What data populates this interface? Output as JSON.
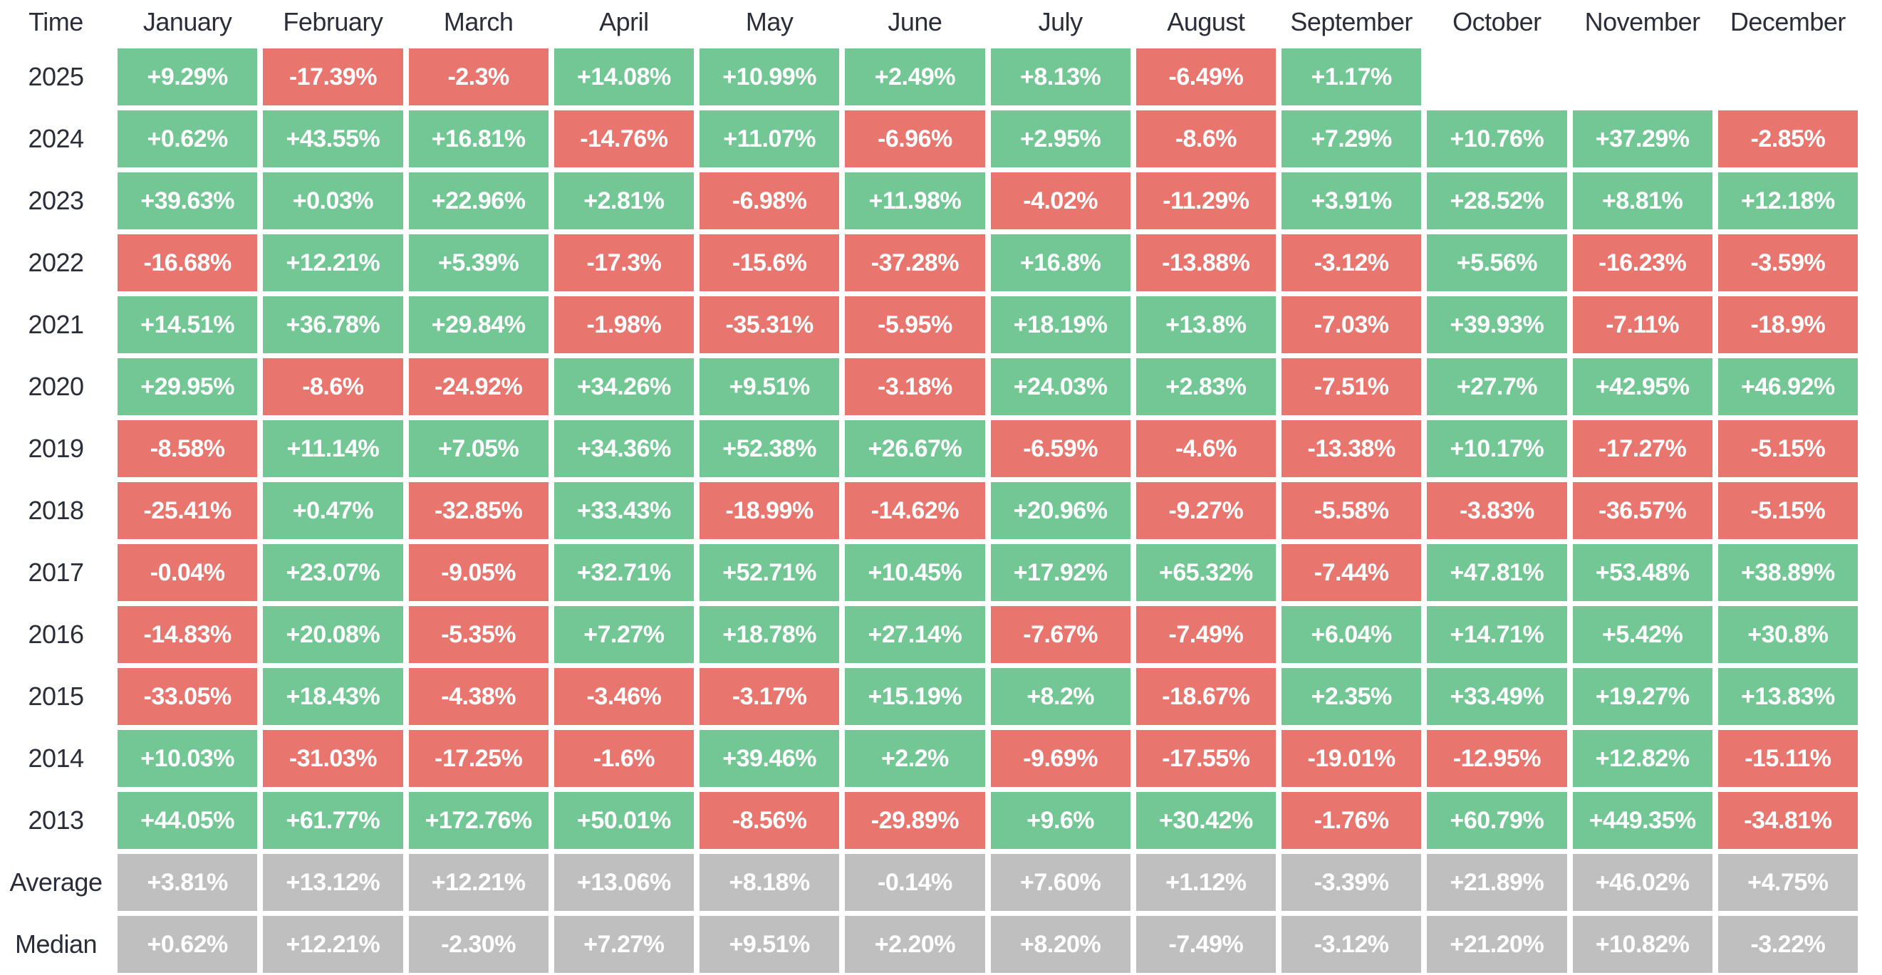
{
  "colors": {
    "positive": "#72C794",
    "negative": "#E8766F",
    "neutral": "#BFBFBF",
    "label_text": "#2A2E39",
    "cell_text": "#FFFFFF",
    "background": "#FFFFFF"
  },
  "chart_data": {
    "type": "heatmap",
    "corner_label": "Time",
    "legend": "none",
    "grid": "off",
    "columns": [
      "January",
      "February",
      "March",
      "April",
      "May",
      "June",
      "July",
      "August",
      "September",
      "October",
      "November",
      "December"
    ],
    "rows": [
      {
        "label": "2025",
        "summary": false,
        "cells": [
          "+9.29%",
          "-17.39%",
          "-2.3%",
          "+14.08%",
          "+10.99%",
          "+2.49%",
          "+8.13%",
          "-6.49%",
          "+1.17%",
          "",
          "",
          ""
        ]
      },
      {
        "label": "2024",
        "summary": false,
        "cells": [
          "+0.62%",
          "+43.55%",
          "+16.81%",
          "-14.76%",
          "+11.07%",
          "-6.96%",
          "+2.95%",
          "-8.6%",
          "+7.29%",
          "+10.76%",
          "+37.29%",
          "-2.85%"
        ]
      },
      {
        "label": "2023",
        "summary": false,
        "cells": [
          "+39.63%",
          "+0.03%",
          "+22.96%",
          "+2.81%",
          "-6.98%",
          "+11.98%",
          "-4.02%",
          "-11.29%",
          "+3.91%",
          "+28.52%",
          "+8.81%",
          "+12.18%"
        ]
      },
      {
        "label": "2022",
        "summary": false,
        "cells": [
          "-16.68%",
          "+12.21%",
          "+5.39%",
          "-17.3%",
          "-15.6%",
          "-37.28%",
          "+16.8%",
          "-13.88%",
          "-3.12%",
          "+5.56%",
          "-16.23%",
          "-3.59%"
        ]
      },
      {
        "label": "2021",
        "summary": false,
        "cells": [
          "+14.51%",
          "+36.78%",
          "+29.84%",
          "-1.98%",
          "-35.31%",
          "-5.95%",
          "+18.19%",
          "+13.8%",
          "-7.03%",
          "+39.93%",
          "-7.11%",
          "-18.9%"
        ]
      },
      {
        "label": "2020",
        "summary": false,
        "cells": [
          "+29.95%",
          "-8.6%",
          "-24.92%",
          "+34.26%",
          "+9.51%",
          "-3.18%",
          "+24.03%",
          "+2.83%",
          "-7.51%",
          "+27.7%",
          "+42.95%",
          "+46.92%"
        ]
      },
      {
        "label": "2019",
        "summary": false,
        "cells": [
          "-8.58%",
          "+11.14%",
          "+7.05%",
          "+34.36%",
          "+52.38%",
          "+26.67%",
          "-6.59%",
          "-4.6%",
          "-13.38%",
          "+10.17%",
          "-17.27%",
          "-5.15%"
        ]
      },
      {
        "label": "2018",
        "summary": false,
        "cells": [
          "-25.41%",
          "+0.47%",
          "-32.85%",
          "+33.43%",
          "-18.99%",
          "-14.62%",
          "+20.96%",
          "-9.27%",
          "-5.58%",
          "-3.83%",
          "-36.57%",
          "-5.15%"
        ]
      },
      {
        "label": "2017",
        "summary": false,
        "cells": [
          "-0.04%",
          "+23.07%",
          "-9.05%",
          "+32.71%",
          "+52.71%",
          "+10.45%",
          "+17.92%",
          "+65.32%",
          "-7.44%",
          "+47.81%",
          "+53.48%",
          "+38.89%"
        ]
      },
      {
        "label": "2016",
        "summary": false,
        "cells": [
          "-14.83%",
          "+20.08%",
          "-5.35%",
          "+7.27%",
          "+18.78%",
          "+27.14%",
          "-7.67%",
          "-7.49%",
          "+6.04%",
          "+14.71%",
          "+5.42%",
          "+30.8%"
        ]
      },
      {
        "label": "2015",
        "summary": false,
        "cells": [
          "-33.05%",
          "+18.43%",
          "-4.38%",
          "-3.46%",
          "-3.17%",
          "+15.19%",
          "+8.2%",
          "-18.67%",
          "+2.35%",
          "+33.49%",
          "+19.27%",
          "+13.83%"
        ]
      },
      {
        "label": "2014",
        "summary": false,
        "cells": [
          "+10.03%",
          "-31.03%",
          "-17.25%",
          "-1.6%",
          "+39.46%",
          "+2.2%",
          "-9.69%",
          "-17.55%",
          "-19.01%",
          "-12.95%",
          "+12.82%",
          "-15.11%"
        ]
      },
      {
        "label": "2013",
        "summary": false,
        "cells": [
          "+44.05%",
          "+61.77%",
          "+172.76%",
          "+50.01%",
          "-8.56%",
          "-29.89%",
          "+9.6%",
          "+30.42%",
          "-1.76%",
          "+60.79%",
          "+449.35%",
          "-34.81%"
        ]
      },
      {
        "label": "Average",
        "summary": true,
        "cells": [
          "+3.81%",
          "+13.12%",
          "+12.21%",
          "+13.06%",
          "+8.18%",
          "-0.14%",
          "+7.60%",
          "+1.12%",
          "-3.39%",
          "+21.89%",
          "+46.02%",
          "+4.75%"
        ]
      },
      {
        "label": "Median",
        "summary": true,
        "cells": [
          "+0.62%",
          "+12.21%",
          "-2.30%",
          "+7.27%",
          "+9.51%",
          "+2.20%",
          "+8.20%",
          "-7.49%",
          "-3.12%",
          "+21.20%",
          "+10.82%",
          "-3.22%"
        ]
      }
    ]
  }
}
